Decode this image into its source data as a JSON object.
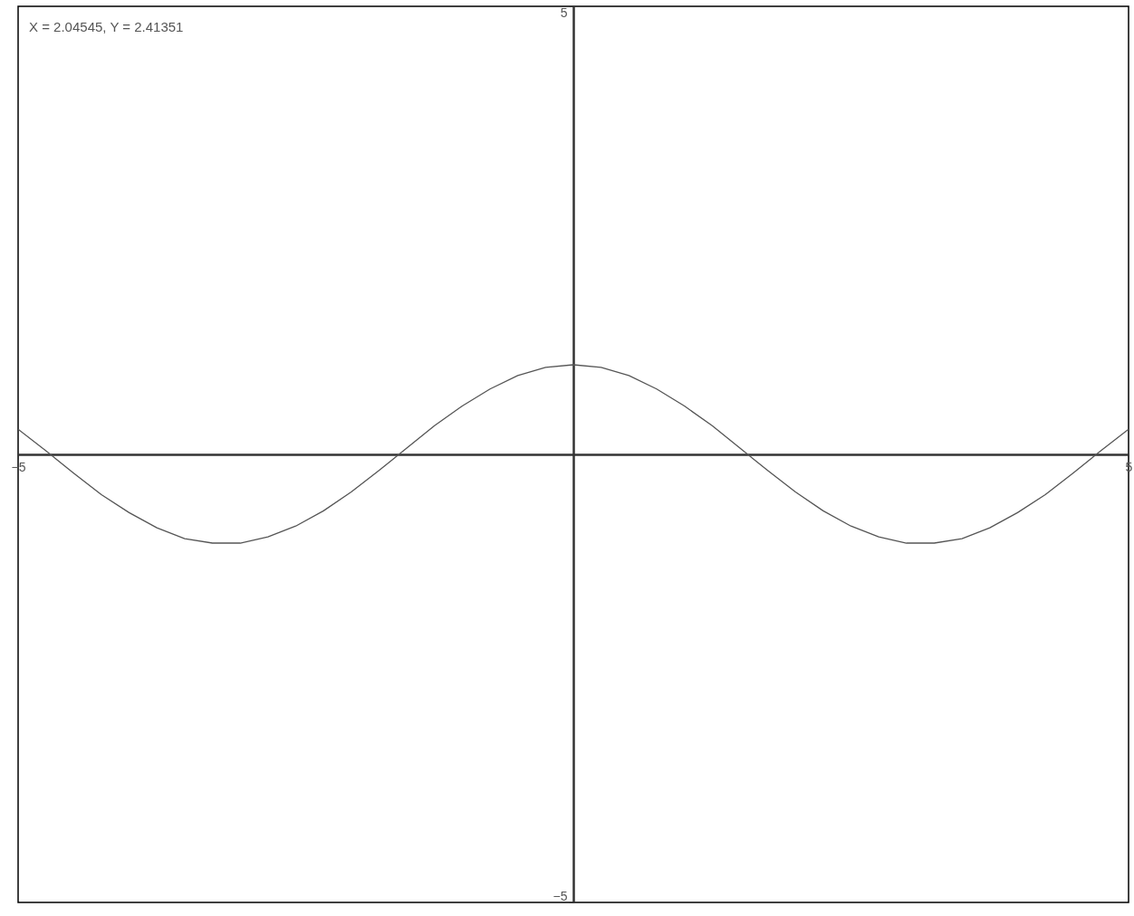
{
  "chart_data": {
    "type": "line",
    "annotations": [
      "X = 2.04545, Y = 2.41351"
    ],
    "x": [
      -5,
      -4.75,
      -4.5,
      -4.25,
      -4,
      -3.75,
      -3.5,
      -3.25,
      -3,
      -2.75,
      -2.5,
      -2.25,
      -2,
      -1.75,
      -1.5,
      -1.25,
      -1,
      -0.75,
      -0.5,
      -0.25,
      0,
      0.25,
      0.5,
      0.75,
      1,
      1.25,
      1.5,
      1.75,
      2,
      2.25,
      2.5,
      2.75,
      3,
      3.25,
      3.5,
      3.75,
      4,
      4.25,
      4.5,
      4.75,
      5
    ],
    "series": [
      {
        "color": "#555555",
        "values": [
          0.28,
          0.04,
          -0.21,
          -0.45,
          -0.65,
          -0.82,
          -0.94,
          -0.99,
          -0.99,
          -0.92,
          -0.8,
          -0.63,
          -0.42,
          -0.18,
          0.07,
          0.32,
          0.54,
          0.73,
          0.88,
          0.97,
          1,
          0.97,
          0.88,
          0.73,
          0.54,
          0.32,
          0.07,
          -0.18,
          -0.42,
          -0.63,
          -0.8,
          -0.92,
          -0.99,
          -0.99,
          -0.94,
          -0.82,
          -0.65,
          -0.45,
          -0.21,
          0.04,
          0.28
        ]
      }
    ],
    "xlim": [
      -5,
      5
    ],
    "ylim": [
      -5,
      5
    ],
    "xticks": [
      -5,
      5
    ],
    "yticks": [
      -5,
      5
    ],
    "grid": false,
    "marker": "none",
    "line_style": "solid"
  }
}
